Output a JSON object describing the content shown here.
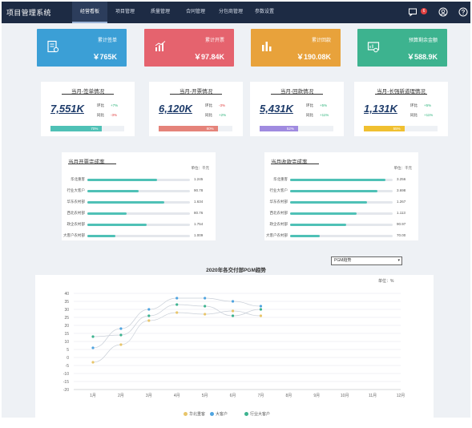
{
  "app": {
    "title": "项目管理系统"
  },
  "nav": [
    "经营看板",
    "项目管理",
    "质量管理",
    "合同管理",
    "分包商管理",
    "参数设置"
  ],
  "notifications": {
    "count": "6"
  },
  "kpis": [
    {
      "label": "累计签单",
      "value": "￥765K",
      "color": "#3b9fd6",
      "icon": "contract-icon"
    },
    {
      "label": "累计开票",
      "value": "￥97.84K",
      "color": "#e5636e",
      "icon": "bar-chart-icon"
    },
    {
      "label": "累计回款",
      "value": "￥190.08K",
      "color": "#e8a23b",
      "icon": "column-chart-icon"
    },
    {
      "label": "预算剩余金额",
      "value": "￥588.9K",
      "color": "#3db38f",
      "icon": "budget-icon"
    }
  ],
  "stats": [
    {
      "title": "当月-签单情况",
      "value": "7,551K",
      "hb_label": "环比",
      "hb": "+7%",
      "hb_color": "#2bb37a",
      "tb_label": "同比",
      "tb": "-3%",
      "tb_color": "#e04040",
      "progress": 0.7,
      "progress_label": "70%",
      "bar_color": "#4fc1b6"
    },
    {
      "title": "当月-开票情况",
      "value": "6,120K",
      "hb_label": "环比",
      "hb": "-3%",
      "hb_color": "#e04040",
      "tb_label": "同比",
      "tb": "+2%",
      "tb_color": "#2bb37a",
      "progress": 0.8,
      "progress_label": "80%",
      "bar_color": "#e5837a"
    },
    {
      "title": "当月-回款情况",
      "value": "5,431K",
      "hb_label": "环比",
      "hb": "+5%",
      "hb_color": "#2bb37a",
      "tb_label": "同比",
      "tb": "+11%",
      "tb_color": "#2bb37a",
      "progress": 0.52,
      "progress_label": "52%",
      "bar_color": "#a08be0"
    },
    {
      "title": "当月-长强新道理情况",
      "value": "1,131K",
      "hb_label": "环比",
      "hb": "+5%",
      "hb_color": "#2bb37a",
      "tb_label": "同比",
      "tb": "+11%",
      "tb_color": "#2bb37a",
      "progress": 0.55,
      "progress_label": "55%",
      "bar_color": "#f0c030"
    }
  ],
  "invoice_rate": {
    "title": "当月开票完成率",
    "unit": "单位：千元",
    "rows": [
      {
        "name": "华北重客",
        "value": "1.245",
        "pct": 0.68
      },
      {
        "name": "行业大客户",
        "value": "90.78",
        "pct": 0.5
      },
      {
        "name": "华东农村部",
        "value": "1.634",
        "pct": 0.75
      },
      {
        "name": "西北农村部",
        "value": "80.76",
        "pct": 0.38
      },
      {
        "name": "政企农村部",
        "value": "1.754",
        "pct": 0.58
      },
      {
        "name": "大客户农村部",
        "value": "1.009",
        "pct": 0.27
      }
    ]
  },
  "payment_rate": {
    "title": "当月收款完成率",
    "unit": "单位：千元",
    "rows": [
      {
        "name": "华北重客",
        "value": "3.256",
        "pct": 0.93
      },
      {
        "name": "行业大客户",
        "value": "3.698",
        "pct": 0.85
      },
      {
        "name": "华东农村部",
        "value": "1.267",
        "pct": 0.75
      },
      {
        "name": "西北农村部",
        "value": "1.113",
        "pct": 0.65
      },
      {
        "name": "政企农村部",
        "value": "90.97",
        "pct": 0.55
      },
      {
        "name": "大客户农村部",
        "value": "70.00",
        "pct": 0.29
      }
    ]
  },
  "trend": {
    "select_value": "PGM趋势",
    "unit": "单位：%"
  },
  "chart_data": {
    "type": "line",
    "title": "2020年各交付部PGM趋势",
    "ylabel": "单位：%",
    "categories": [
      "1月",
      "2月",
      "3月",
      "4月",
      "5月",
      "6月",
      "7月",
      "8月",
      "9月",
      "10月",
      "11月",
      "12月"
    ],
    "ylim": [
      -20,
      40
    ],
    "yticks": [
      -20,
      -15,
      -10,
      -5,
      0,
      5,
      10,
      15,
      20,
      25,
      30,
      35,
      40
    ],
    "grid": true,
    "legend": "bottom",
    "series": [
      {
        "name": "华北重客",
        "color": "#e8c56a",
        "values": [
          -3,
          8,
          23,
          28,
          27,
          29,
          26,
          null,
          null,
          null,
          null,
          null
        ]
      },
      {
        "name": "大客户",
        "color": "#4fa4e0",
        "values": [
          6,
          18,
          30,
          37,
          37,
          35,
          32,
          null,
          null,
          null,
          null,
          null
        ]
      },
      {
        "name": "行业大客户",
        "color": "#3db38f",
        "values": [
          13,
          14,
          26,
          33,
          32,
          26,
          30,
          null,
          null,
          null,
          null,
          null
        ]
      }
    ]
  }
}
